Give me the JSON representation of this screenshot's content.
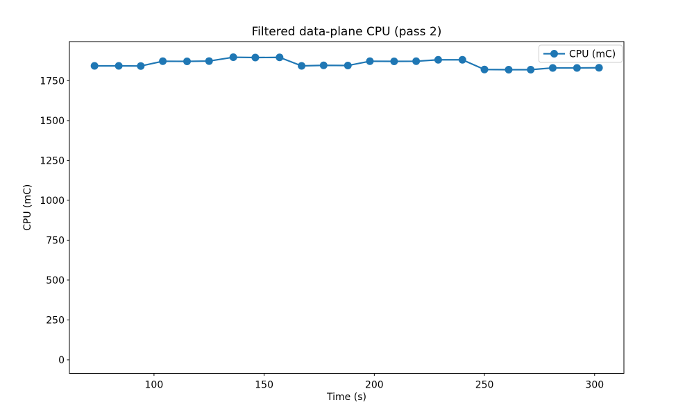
{
  "chart_data": {
    "type": "line",
    "title": "Filtered data-plane CPU (pass 2)",
    "xlabel": "Time (s)",
    "ylabel": "CPU (mC)",
    "grid": false,
    "background": "#ffffff",
    "axis_color": "#000000",
    "legend": {
      "position": "upper right",
      "entries": [
        "CPU (mC)"
      ]
    },
    "xlim": [
      61.6,
      313.3
    ],
    "ylim": [
      -85,
      1995
    ],
    "xticks": [
      100,
      150,
      200,
      250,
      300
    ],
    "yticks": [
      0,
      250,
      500,
      750,
      1000,
      1250,
      1500,
      1750
    ],
    "series": [
      {
        "name": "CPU (mC)",
        "color": "#1f77b4",
        "marker": "circle",
        "marker_size_px": 11,
        "line_width": 2.2,
        "x": [
          73,
          84,
          94,
          104,
          115,
          125,
          136,
          146,
          157,
          167,
          177,
          188,
          198,
          209,
          219,
          229,
          240,
          250,
          261,
          271,
          281,
          292,
          302
        ],
        "y": [
          1843,
          1843,
          1842,
          1872,
          1871,
          1873,
          1897,
          1895,
          1896,
          1843,
          1846,
          1845,
          1872,
          1871,
          1872,
          1881,
          1881,
          1820,
          1819,
          1819,
          1830,
          1830,
          1831
        ]
      }
    ]
  }
}
